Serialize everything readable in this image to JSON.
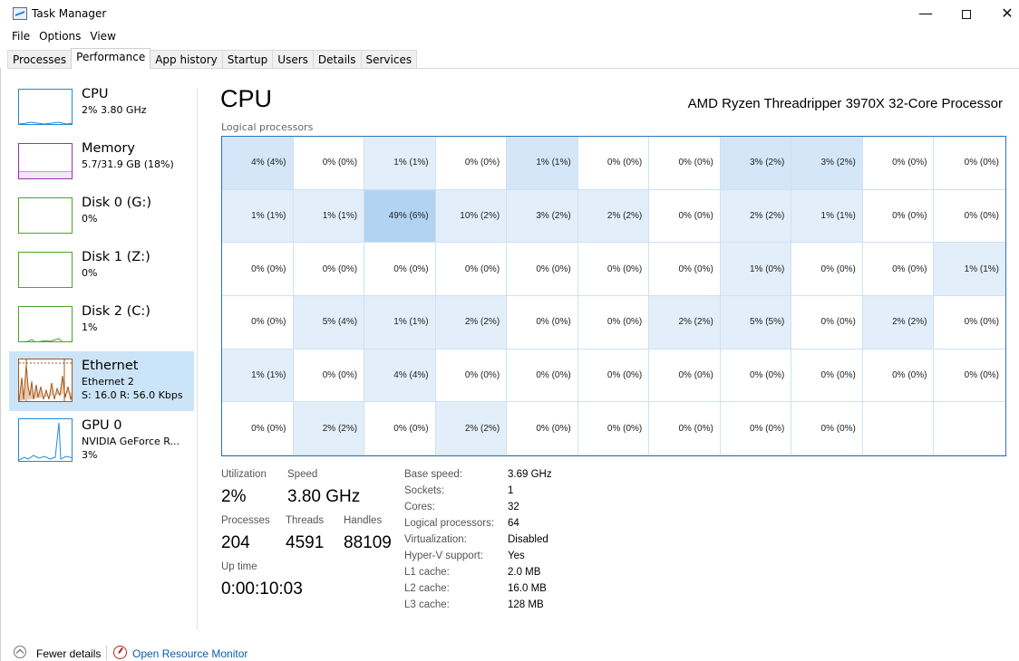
{
  "window": {
    "title": "Task Manager",
    "minimize": "—",
    "close": "✕"
  },
  "menu": [
    "File",
    "Options",
    "View"
  ],
  "tabs": [
    "Processes",
    "Performance",
    "App history",
    "Startup",
    "Users",
    "Details",
    "Services"
  ],
  "active_tab": "Performance",
  "sidebar": {
    "items": [
      {
        "title": "CPU",
        "sub1": "2%  3.80 GHz",
        "sub2": "",
        "color": "#1f8ad8"
      },
      {
        "title": "Memory",
        "sub1": "5.7/31.9 GB (18%)",
        "sub2": "",
        "color": "#9a2fb4"
      },
      {
        "title": "Disk 0 (G:)",
        "sub1": "0%",
        "sub2": "",
        "color": "#4aa62a"
      },
      {
        "title": "Disk 1 (Z:)",
        "sub1": "0%",
        "sub2": "",
        "color": "#4aa62a"
      },
      {
        "title": "Disk 2 (C:)",
        "sub1": "1%",
        "sub2": "",
        "color": "#4aa62a"
      },
      {
        "title": "Ethernet",
        "sub1": "Ethernet 2",
        "sub2": "S: 16.0  R: 56.0 Kbps",
        "color": "#a8571a"
      },
      {
        "title": "GPU 0",
        "sub1": "NVIDIA GeForce R...",
        "sub2": "3%",
        "color": "#1f8ad8"
      }
    ]
  },
  "main": {
    "title": "CPU",
    "processor": "AMD Ryzen Threadripper 3970X 32-Core Processor",
    "grid_label": "Logical processors",
    "cells": [
      "4% (4%)",
      "0% (0%)",
      "1% (1%)",
      "0% (0%)",
      "1% (1%)",
      "0% (0%)",
      "0% (0%)",
      "3% (2%)",
      "3% (2%)",
      "0% (0%)",
      "0% (0%)",
      "1% (1%)",
      "1% (1%)",
      "49% (6%)",
      "10% (2%)",
      "3% (2%)",
      "2% (2%)",
      "0% (0%)",
      "2% (2%)",
      "1% (1%)",
      "0% (0%)",
      "0% (0%)",
      "0% (0%)",
      "0% (0%)",
      "0% (0%)",
      "0% (0%)",
      "0% (0%)",
      "0% (0%)",
      "0% (0%)",
      "1% (0%)",
      "0% (0%)",
      "0% (0%)",
      "1% (1%)",
      "0% (0%)",
      "5% (4%)",
      "1% (1%)",
      "2% (2%)",
      "0% (0%)",
      "0% (0%)",
      "2% (2%)",
      "5% (5%)",
      "0% (0%)",
      "2% (2%)",
      "0% (0%)",
      "1% (1%)",
      "0% (0%)",
      "4% (4%)",
      "0% (0%)",
      "0% (0%)",
      "0% (0%)",
      "0% (0%)",
      "0% (0%)",
      "0% (0%)",
      "0% (0%)",
      "0% (0%)",
      "0% (0%)",
      "2% (2%)",
      "0% (0%)",
      "2% (2%)",
      "0% (0%)",
      "0% (0%)",
      "0% (0%)",
      "0% (0%)",
      "0% (0%)",
      "",
      ""
    ],
    "cell_levels": [
      2,
      0,
      1,
      0,
      2,
      0,
      0,
      2,
      2,
      0,
      0,
      1,
      1,
      3,
      1,
      1,
      1,
      0,
      1,
      1,
      0,
      0,
      0,
      0,
      0,
      0,
      0,
      0,
      0,
      1,
      0,
      0,
      1,
      0,
      1,
      1,
      1,
      0,
      0,
      1,
      1,
      0,
      1,
      0,
      1,
      0,
      1,
      0,
      0,
      0,
      0,
      0,
      0,
      0,
      0,
      0,
      1,
      0,
      1,
      0,
      0,
      0,
      0,
      0,
      -1,
      -1
    ],
    "stats": {
      "utilization_label": "Utilization",
      "utilization": "2%",
      "speed_label": "Speed",
      "speed": "3.80 GHz",
      "processes_label": "Processes",
      "processes": "204",
      "threads_label": "Threads",
      "threads": "4591",
      "handles_label": "Handles",
      "handles": "88109",
      "uptime_label": "Up time",
      "uptime": "0:00:10:03"
    },
    "info": [
      {
        "key": "Base speed:",
        "value": "3.69 GHz"
      },
      {
        "key": "Sockets:",
        "value": "1"
      },
      {
        "key": "Cores:",
        "value": "32"
      },
      {
        "key": "Logical processors:",
        "value": "64"
      },
      {
        "key": "Virtualization:",
        "value": "Disabled"
      },
      {
        "key": "Hyper-V support:",
        "value": "Yes"
      },
      {
        "key": "L1 cache:",
        "value": "2.0 MB"
      },
      {
        "key": "L2 cache:",
        "value": "16.0 MB"
      },
      {
        "key": "L3 cache:",
        "value": "128 MB"
      }
    ]
  },
  "footer": {
    "fewer_details": "Fewer details",
    "resource_monitor": "Open Resource Monitor"
  }
}
